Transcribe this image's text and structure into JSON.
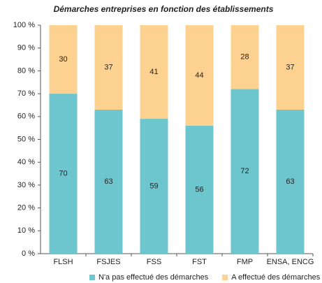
{
  "chart_data": {
    "type": "stacked_bar",
    "title": "Démarches entreprises en fonction des établissements",
    "categories": [
      "FLSH",
      "FSJES",
      "FSS",
      "FST",
      "FMP",
      "ENSA, ENCG"
    ],
    "series": [
      {
        "name": "N'a pas effectué des démarches",
        "color": "#6dc5ce",
        "values": [
          70,
          63,
          59,
          56,
          72,
          63
        ]
      },
      {
        "name": "A effectué des démarches",
        "color": "#fdd18f",
        "values": [
          30,
          37,
          41,
          44,
          28,
          37
        ]
      }
    ],
    "ylim": [
      0,
      100
    ],
    "yticks": [
      {
        "value": 0,
        "label": "0 %"
      },
      {
        "value": 10,
        "label": "10 %"
      },
      {
        "value": 20,
        "label": "20 %"
      },
      {
        "value": 30,
        "label": "30 %"
      },
      {
        "value": 40,
        "label": "40 %"
      },
      {
        "value": 50,
        "label": "50 %"
      },
      {
        "value": 60,
        "label": "60 %"
      },
      {
        "value": 70,
        "label": "70 %"
      },
      {
        "value": 80,
        "label": "80 %"
      },
      {
        "value": 90,
        "label": "90 %"
      },
      {
        "value": 100,
        "label": "100 %"
      }
    ],
    "grid": false,
    "legend": "bottom"
  }
}
